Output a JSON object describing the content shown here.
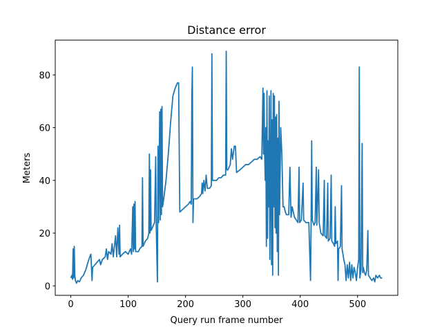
{
  "chart_data": {
    "type": "line",
    "title": "Distance error",
    "x_label": "Query run frame number",
    "y_label": "Meters",
    "color": "#1f77b4",
    "xlim": [
      -27.15,
      570.15
    ],
    "ylim": [
      -3.6,
      93.2
    ],
    "xticks": [
      0,
      100,
      200,
      300,
      400,
      500
    ],
    "yticks": [
      0,
      20,
      40,
      60,
      80
    ],
    "x": [
      0,
      2,
      3,
      4,
      5,
      6,
      7,
      8,
      10,
      12,
      15,
      18,
      22,
      26,
      30,
      33,
      35,
      36,
      37,
      38,
      42,
      46,
      50,
      52,
      55,
      60,
      62,
      64,
      66,
      70,
      72,
      74,
      76,
      78,
      80,
      82,
      84,
      85,
      86,
      90,
      95,
      100,
      104,
      106,
      108,
      109,
      110,
      111,
      112,
      113,
      118,
      120,
      124,
      125,
      126,
      130,
      134,
      136,
      137,
      138,
      139,
      140,
      142,
      146,
      148,
      149,
      151,
      152,
      153,
      155,
      156,
      157,
      158,
      159,
      160,
      162,
      166,
      170,
      174,
      178,
      182,
      186,
      188,
      190,
      195,
      200,
      205,
      208,
      210,
      211,
      212,
      213,
      214,
      220,
      225,
      228,
      229,
      230,
      232,
      234,
      236,
      238,
      242,
      245,
      246,
      247,
      250,
      254,
      258,
      262,
      266,
      270,
      271,
      272,
      274,
      278,
      280,
      282,
      285,
      287,
      289,
      295,
      300,
      305,
      310,
      315,
      320,
      325,
      330,
      333,
      335,
      336,
      337,
      338,
      339,
      340,
      341,
      342,
      343,
      344,
      345,
      346,
      347,
      349,
      350,
      351,
      352,
      353,
      354,
      355,
      356,
      357,
      358,
      359,
      360,
      361,
      362,
      363,
      364,
      366,
      368,
      370,
      372,
      374,
      376,
      380,
      382,
      384,
      386,
      390,
      396,
      398,
      399,
      402,
      405,
      406,
      410,
      415,
      418,
      419,
      420,
      421,
      424,
      426,
      428,
      429,
      432,
      433,
      436,
      440,
      442,
      443,
      446,
      448,
      449,
      452,
      454,
      455,
      458,
      460,
      461,
      462,
      465,
      466,
      467,
      470,
      472,
      473,
      476,
      478,
      480,
      482,
      484,
      486,
      488,
      490,
      492,
      494,
      496,
      498,
      500,
      502,
      503,
      504,
      506,
      508,
      509,
      510,
      512,
      514,
      516,
      518,
      519,
      522,
      525,
      528,
      530,
      532,
      535,
      538,
      540,
      543
    ],
    "values": [
      3,
      4,
      2.5,
      14,
      3,
      15,
      4,
      2,
      1,
      2,
      1.5,
      3,
      4,
      6,
      9,
      11,
      12,
      7,
      2,
      7,
      8,
      9,
      10,
      8,
      10,
      11,
      14,
      10,
      13,
      12,
      16,
      11,
      15,
      19,
      11,
      22,
      12,
      23,
      11,
      12,
      13,
      12,
      14,
      12,
      30,
      13,
      31,
      14,
      32,
      13,
      13,
      14,
      15,
      41,
      15,
      17,
      18,
      20,
      50,
      20,
      44,
      21,
      22,
      24,
      49,
      22,
      1.5,
      53,
      24,
      66,
      25,
      67,
      27,
      68,
      30,
      33,
      40,
      50,
      62,
      72,
      75,
      77,
      77,
      28,
      29,
      30,
      31,
      32,
      31,
      72,
      83,
      24,
      33,
      33,
      34,
      35,
      39,
      35,
      40,
      36,
      42,
      37,
      37,
      38,
      88,
      40,
      40,
      40,
      41,
      41,
      42,
      42,
      89,
      44,
      44,
      46,
      52,
      48,
      53,
      53,
      43,
      44,
      45,
      46,
      46,
      47,
      48,
      48,
      49,
      48,
      75,
      50,
      73,
      50,
      40,
      60,
      15,
      74,
      18,
      55,
      30,
      72,
      10,
      74,
      8,
      63,
      4,
      73,
      30,
      72,
      22,
      64,
      20,
      65,
      13,
      56,
      4,
      70,
      27,
      60,
      50,
      30,
      30,
      28,
      27,
      27,
      45,
      26,
      30,
      26,
      24,
      45,
      24,
      25,
      39,
      25,
      24,
      24,
      2,
      24,
      55,
      25,
      23,
      24,
      45,
      23,
      44,
      24,
      20,
      19,
      40,
      19,
      18,
      39,
      17,
      18,
      42,
      17,
      16,
      15,
      30,
      16,
      17,
      2,
      14,
      15,
      38,
      14,
      10,
      8,
      2,
      8,
      3,
      9,
      2,
      8,
      3,
      7,
      5,
      2,
      7,
      10,
      83,
      3,
      6,
      54,
      5,
      7,
      5,
      4,
      6,
      21,
      4,
      3,
      2,
      3,
      1.5,
      4,
      3,
      4,
      3,
      3
    ]
  }
}
